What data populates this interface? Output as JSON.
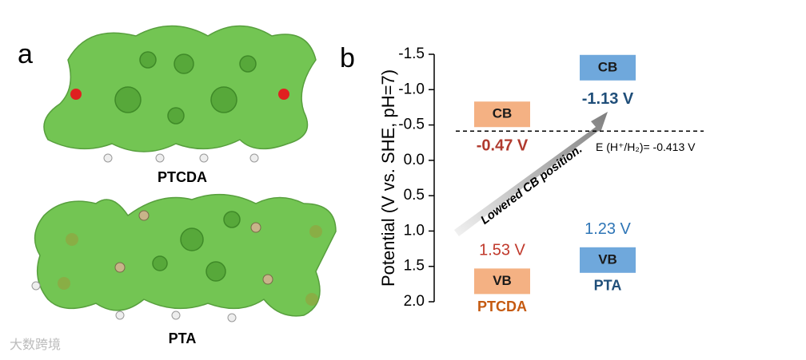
{
  "panel_labels": [
    "a",
    "b"
  ],
  "molecules": [
    "PTCDA",
    "PTA"
  ],
  "watermark": "大数跨境",
  "chart_data": {
    "type": "energy-level",
    "y_label": "Potential (V vs. SHE, pH=7)",
    "ylim": [
      -1.5,
      2.0
    ],
    "inverted": true,
    "yticks": [
      -1.5,
      {
        "value": -1,
        "label": "-1.0"
      },
      -0.5,
      {
        "value": 0,
        "label": "0.0"
      },
      0.5,
      {
        "value": 1,
        "label": "1.0"
      },
      1.5,
      {
        "value": 2,
        "label": "2.0"
      }
    ],
    "categories": [
      "CB",
      "VB"
    ],
    "series": [
      {
        "name": "PTCDA",
        "color": "#f4b183",
        "values": [
          -0.47,
          1.53
        ],
        "value_labels": [
          "-0.47 V",
          "1.53 V"
        ]
      },
      {
        "name": "PTA",
        "color": "#6fa8dc",
        "values": [
          -1.13,
          1.23
        ],
        "value_labels": [
          "-1.13 V",
          "1.23 V"
        ]
      }
    ],
    "reference_line": {
      "value": -0.413,
      "label": "E (H⁺/H₂)= -0.413 V"
    },
    "annotation": "Lowered CB position."
  }
}
